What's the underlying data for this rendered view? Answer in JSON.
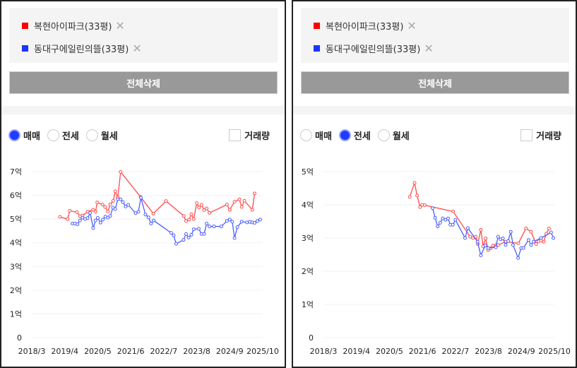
{
  "panels": [
    {
      "legend": [
        {
          "label": "복현아이파크(33평)",
          "color": "#ff0000",
          "remove_icon": "close-icon"
        },
        {
          "label": "동대구에일린의뜰(33평)",
          "color": "#1a35ff",
          "remove_icon": "close-icon"
        }
      ],
      "delete_all_label": "전체삭제",
      "radios": [
        {
          "label": "매매",
          "selected": true
        },
        {
          "label": "전세",
          "selected": false
        },
        {
          "label": "월세",
          "selected": false
        }
      ],
      "volume_checkbox": {
        "label": "거래량",
        "checked": false
      }
    },
    {
      "legend": [
        {
          "label": "복현아이파크(33평)",
          "color": "#ff0000",
          "remove_icon": "close-icon"
        },
        {
          "label": "동대구에일린의뜰(33평)",
          "color": "#1a35ff",
          "remove_icon": "close-icon"
        }
      ],
      "delete_all_label": "전체삭제",
      "radios": [
        {
          "label": "매매",
          "selected": false
        },
        {
          "label": "전세",
          "selected": true
        },
        {
          "label": "월세",
          "selected": false
        }
      ],
      "volume_checkbox": {
        "label": "거래량",
        "checked": false
      }
    }
  ],
  "chart_data": [
    {
      "type": "line",
      "title": "매매",
      "x_unit": "months since 2018/3",
      "x_ticks": [
        "2018/3",
        "2019/4",
        "2020/5",
        "2021/6",
        "2022/7",
        "2023/8",
        "2024/9",
        "2025/10"
      ],
      "xlim": [
        0,
        91
      ],
      "y_unit": "억",
      "y_ticks": [
        "0",
        "1억",
        "2억",
        "3억",
        "4억",
        "5억",
        "6억",
        "7억"
      ],
      "ylim": [
        0,
        7
      ],
      "grid": true,
      "series": [
        {
          "name": "복현아이파크(33평)",
          "color": "#ff4a4a",
          "points": [
            [
              11.1,
              5.09
            ],
            [
              14.1,
              5.0
            ],
            [
              15,
              5.35
            ],
            [
              17.8,
              5.29
            ],
            [
              19,
              5.12
            ],
            [
              20,
              5.15
            ],
            [
              22,
              5.31
            ],
            [
              24.2,
              5.39
            ],
            [
              25.1,
              5.31
            ],
            [
              25.8,
              5.7
            ],
            [
              27.9,
              5.61
            ],
            [
              28.9,
              5.51
            ],
            [
              30,
              5.32
            ],
            [
              30.9,
              5.62
            ],
            [
              32.1,
              5.77
            ],
            [
              32.9,
              6.17
            ],
            [
              33.9,
              5.91
            ],
            [
              35,
              6.99
            ],
            [
              42.9,
              5.93
            ],
            [
              47.9,
              5.23
            ],
            [
              52.9,
              5.76
            ],
            [
              59.9,
              5.13
            ],
            [
              60.8,
              4.92
            ],
            [
              62,
              4.98
            ],
            [
              62.9,
              5.2
            ],
            [
              63.8,
              5.0
            ],
            [
              65,
              5.67
            ],
            [
              65.9,
              5.49
            ],
            [
              66.9,
              5.6
            ],
            [
              67.9,
              5.38
            ],
            [
              68.9,
              5.45
            ],
            [
              70,
              5.26
            ],
            [
              76.9,
              5.61
            ],
            [
              78,
              5.39
            ],
            [
              79.9,
              5.73
            ],
            [
              81.8,
              5.83
            ],
            [
              82.7,
              5.51
            ],
            [
              83.8,
              5.77
            ],
            [
              86.9,
              5.39
            ],
            [
              87.8,
              6.08
            ]
          ]
        },
        {
          "name": "동대구에일린의뜰(33평)",
          "color": "#4a5cff",
          "points": [
            [
              16,
              4.81
            ],
            [
              17,
              4.81
            ],
            [
              18,
              4.78
            ],
            [
              19,
              4.94
            ],
            [
              20,
              5.06
            ],
            [
              21,
              5.0
            ],
            [
              22,
              5.04
            ],
            [
              23,
              5.26
            ],
            [
              24.2,
              4.62
            ],
            [
              25.1,
              4.94
            ],
            [
              26,
              5.05
            ],
            [
              27.1,
              4.85
            ],
            [
              28,
              4.98
            ],
            [
              29,
              5.1
            ],
            [
              30,
              5.06
            ],
            [
              30.9,
              5.13
            ],
            [
              32,
              5.48
            ],
            [
              32.9,
              5.42
            ],
            [
              33.9,
              5.84
            ],
            [
              35,
              5.83
            ],
            [
              35.9,
              5.71
            ],
            [
              37,
              5.53
            ],
            [
              38,
              5.6
            ],
            [
              40.9,
              5.25
            ],
            [
              42,
              5.31
            ],
            [
              43,
              5.9
            ],
            [
              44.8,
              5.19
            ],
            [
              46,
              5.07
            ],
            [
              47,
              4.81
            ],
            [
              48,
              4.94
            ],
            [
              54.9,
              4.42
            ],
            [
              55.9,
              4.31
            ],
            [
              56.9,
              3.96
            ],
            [
              59.8,
              4.12
            ],
            [
              60.8,
              4.37
            ],
            [
              61.8,
              4.22
            ],
            [
              62.9,
              4.34
            ],
            [
              63.8,
              4.57
            ],
            [
              65.8,
              4.59
            ],
            [
              66.9,
              4.37
            ],
            [
              67.9,
              4.37
            ],
            [
              68.9,
              4.81
            ],
            [
              70,
              4.69
            ],
            [
              71.8,
              4.69
            ],
            [
              74.7,
              4.69
            ],
            [
              76.9,
              4.92
            ],
            [
              78,
              4.98
            ],
            [
              79,
              4.89
            ],
            [
              79.9,
              4.2
            ],
            [
              81,
              4.66
            ],
            [
              82.7,
              4.89
            ],
            [
              84.8,
              4.86
            ],
            [
              85.9,
              4.88
            ],
            [
              86.9,
              4.86
            ],
            [
              87.8,
              4.84
            ],
            [
              88.9,
              4.92
            ],
            [
              90,
              4.98
            ]
          ]
        }
      ]
    },
    {
      "type": "line",
      "title": "전세",
      "x_unit": "months since 2018/3",
      "x_ticks": [
        "2018/3",
        "2019/4",
        "2020/5",
        "2021/6",
        "2022/7",
        "2023/8",
        "2024/9",
        "2025/10"
      ],
      "xlim": [
        0,
        91
      ],
      "y_unit": "억",
      "y_ticks": [
        "0",
        "1억",
        "2억",
        "3억",
        "4억",
        "5억"
      ],
      "ylim": [
        0,
        5
      ],
      "grid": true,
      "series": [
        {
          "name": "복현아이파크(33평)",
          "color": "#ff4a4a",
          "points": [
            [
              34,
              4.24
            ],
            [
              35.9,
              4.66
            ],
            [
              36.9,
              4.28
            ],
            [
              38.1,
              3.93
            ],
            [
              38.9,
              4.0
            ],
            [
              39.9,
              3.99
            ],
            [
              51.1,
              3.8
            ],
            [
              57.8,
              3.04
            ],
            [
              58.9,
              3.0
            ],
            [
              60,
              3.04
            ],
            [
              60.8,
              2.82
            ],
            [
              62,
              3.25
            ],
            [
              62.9,
              2.75
            ],
            [
              63.9,
              2.99
            ],
            [
              64.9,
              2.64
            ],
            [
              65.9,
              2.69
            ],
            [
              66.8,
              2.77
            ],
            [
              68.1,
              2.79
            ],
            [
              68.8,
              2.79
            ],
            [
              71.8,
              2.89
            ],
            [
              76.8,
              2.84
            ],
            [
              79.8,
              3.29
            ],
            [
              81.8,
              3.19
            ],
            [
              83.8,
              2.82
            ],
            [
              84.7,
              2.9
            ],
            [
              85.7,
              2.92
            ],
            [
              86.8,
              2.89
            ],
            [
              87.8,
              3.13
            ],
            [
              88.9,
              3.29
            ]
          ]
        },
        {
          "name": "동대구에일린의뜰(33평)",
          "color": "#4a5cff",
          "points": [
            [
              43,
              3.9
            ],
            [
              44,
              3.61
            ],
            [
              45,
              3.35
            ],
            [
              46,
              3.46
            ],
            [
              47,
              3.59
            ],
            [
              48.1,
              3.55
            ],
            [
              49.1,
              3.59
            ],
            [
              50,
              3.4
            ],
            [
              51,
              3.4
            ],
            [
              52,
              3.55
            ],
            [
              55.8,
              3.0
            ],
            [
              56.9,
              3.3
            ],
            [
              60.7,
              2.89
            ],
            [
              62,
              2.48
            ],
            [
              63.8,
              2.78
            ],
            [
              64.9,
              2.7
            ],
            [
              67.9,
              2.72
            ],
            [
              68.8,
              3.04
            ],
            [
              69.8,
              2.96
            ],
            [
              70.7,
              2.99
            ],
            [
              71.8,
              2.79
            ],
            [
              72.8,
              2.91
            ],
            [
              73.8,
              3.19
            ],
            [
              74.7,
              2.79
            ],
            [
              76.7,
              2.4
            ],
            [
              77.9,
              2.7
            ],
            [
              78.8,
              2.7
            ],
            [
              80.8,
              2.94
            ],
            [
              81.8,
              2.79
            ],
            [
              82.8,
              2.89
            ],
            [
              85.7,
              3.0
            ],
            [
              89.7,
              3.17
            ],
            [
              90.6,
              3.0
            ]
          ]
        }
      ]
    }
  ]
}
